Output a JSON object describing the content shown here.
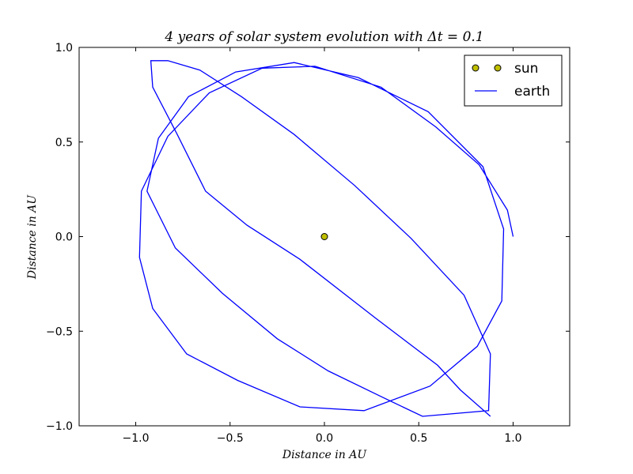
{
  "chart_data": {
    "type": "line",
    "title": "4 years of solar system evolution with Δt = 0.1",
    "xlabel": "Distance in AU",
    "ylabel": "Distance in AU",
    "xlim": [
      -1.3,
      1.3
    ],
    "ylim": [
      -1.0,
      1.0
    ],
    "xticks": [
      -1.0,
      -0.5,
      0.0,
      0.5,
      1.0
    ],
    "xtick_labels": [
      "−1.0",
      "−0.5",
      "0.0",
      "0.5",
      "1.0"
    ],
    "yticks": [
      -1.0,
      -0.5,
      0.0,
      0.5,
      1.0
    ],
    "ytick_labels": [
      "−1.0",
      "−0.5",
      "0.0",
      "0.5",
      "1.0"
    ],
    "grid": false,
    "legend_position": "top-right",
    "series": [
      {
        "name": "sun",
        "kind": "marker",
        "color": "#bfbf00",
        "x": [
          0.0
        ],
        "y": [
          0.0
        ]
      },
      {
        "name": "earth",
        "kind": "line",
        "color": "#0000ff",
        "x": [
          1.0,
          0.97,
          0.82,
          0.59,
          0.3,
          -0.05,
          -0.33,
          -0.61,
          -0.83,
          -0.97,
          -0.98,
          -0.91,
          -0.73,
          -0.46,
          -0.13,
          0.21,
          0.56,
          0.81,
          0.94,
          0.95,
          0.84,
          0.55,
          0.18,
          -0.16,
          -0.47,
          -0.72,
          -0.88,
          -0.94,
          -0.79,
          -0.54,
          -0.25,
          0.02,
          0.31,
          0.52,
          0.87,
          0.88,
          0.74,
          0.46,
          0.16,
          -0.16,
          -0.44,
          -0.66,
          -0.83,
          -0.92,
          -0.91,
          -0.78,
          -0.63,
          -0.41,
          -0.13,
          0.27,
          0.6,
          0.72,
          0.88
        ],
        "y": [
          0.0,
          0.14,
          0.38,
          0.58,
          0.79,
          0.9,
          0.89,
          0.76,
          0.53,
          0.24,
          -0.11,
          -0.38,
          -0.62,
          -0.76,
          -0.9,
          -0.92,
          -0.79,
          -0.58,
          -0.34,
          0.04,
          0.37,
          0.66,
          0.84,
          0.92,
          0.87,
          0.74,
          0.52,
          0.24,
          -0.06,
          -0.3,
          -0.54,
          -0.71,
          -0.85,
          -0.95,
          -0.92,
          -0.62,
          -0.31,
          -0.01,
          0.27,
          0.54,
          0.74,
          0.88,
          0.93,
          0.93,
          0.79,
          0.54,
          0.24,
          0.06,
          -0.12,
          -0.43,
          -0.68,
          -0.81,
          -0.95
        ]
      }
    ]
  }
}
